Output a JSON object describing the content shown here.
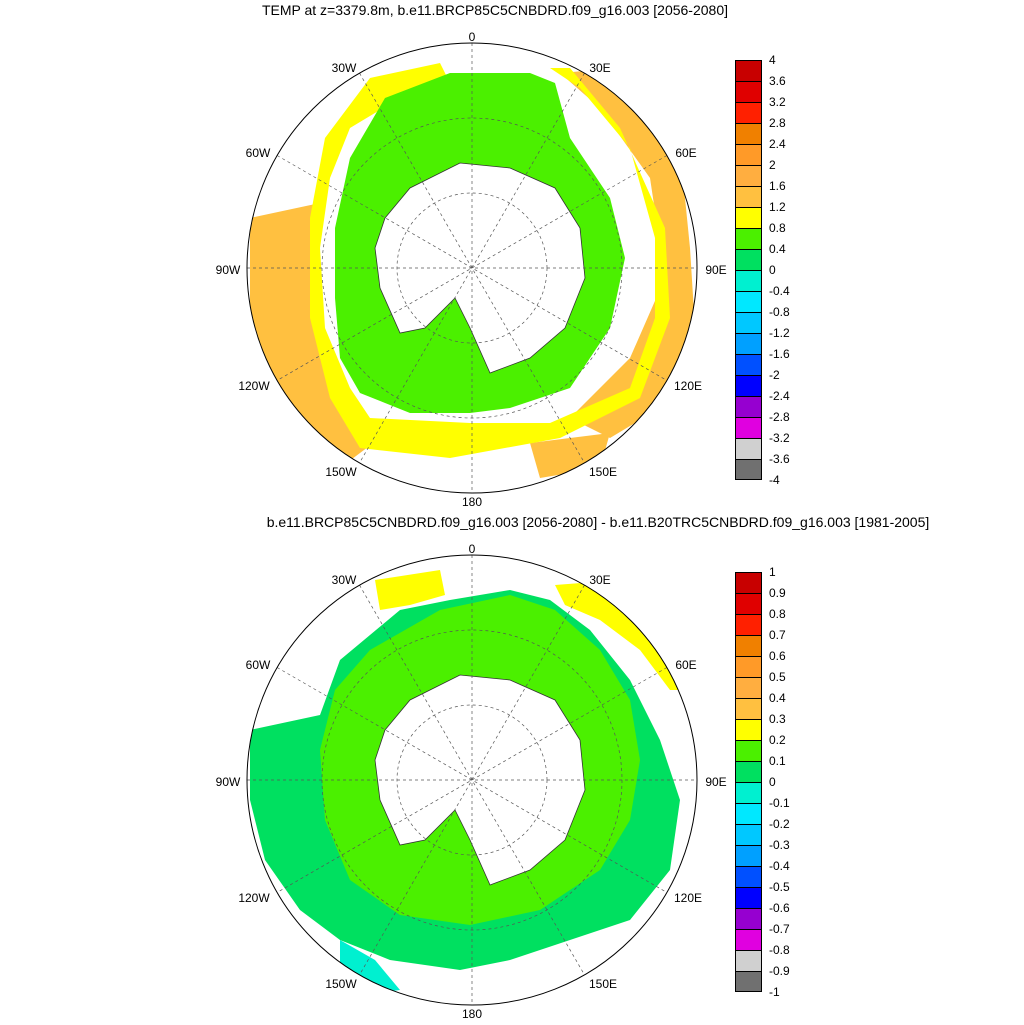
{
  "titles": {
    "top": "TEMP at z=3379.8m, b.e11.BRCP85C5CNBDRD.f09_g16.003 [2056-2080]",
    "bottom": "b.e11.BRCP85C5CNBDRD.f09_g16.003 [2056-2080] - b.e11.B20TRC5CNBDRD.f09_g16.003 [1981-2005]"
  },
  "map": {
    "projection": "south polar stereographic",
    "longitude_labels": [
      "0",
      "30E",
      "60E",
      "90E",
      "120E",
      "150E",
      "180",
      "150W",
      "120W",
      "90W",
      "60W",
      "30W"
    ],
    "land_color": "#ffffff",
    "graticule": "dashed"
  },
  "colorbars": {
    "top": {
      "labels": [
        "4",
        "3.6",
        "3.2",
        "2.8",
        "2.4",
        "2",
        "1.6",
        "1.2",
        "0.8",
        "0.4",
        "0",
        "-0.4",
        "-0.8",
        "-1.2",
        "-1.6",
        "-2",
        "-2.4",
        "-2.8",
        "-3.2",
        "-3.6",
        "-4"
      ],
      "colors": [
        "#c80000",
        "#e00000",
        "#ff2000",
        "#f08000",
        "#ff9a28",
        "#ffae40",
        "#ffc040",
        "#ffff00",
        "#4bf000",
        "#00e060",
        "#00f0d0",
        "#00e8ff",
        "#00c8ff",
        "#00a0ff",
        "#0050ff",
        "#0000ff",
        "#9600d0",
        "#e000e0",
        "#d0d0d0",
        "#707070"
      ]
    },
    "bottom": {
      "labels": [
        "1",
        "0.9",
        "0.8",
        "0.7",
        "0.6",
        "0.5",
        "0.4",
        "0.3",
        "0.2",
        "0.1",
        "0",
        "-0.1",
        "-0.2",
        "-0.3",
        "-0.4",
        "-0.5",
        "-0.6",
        "-0.7",
        "-0.8",
        "-0.9",
        "-1"
      ],
      "colors": [
        "#c80000",
        "#e00000",
        "#ff2000",
        "#f08000",
        "#ff9a28",
        "#ffae40",
        "#ffc040",
        "#ffff00",
        "#4bf000",
        "#00e060",
        "#00f0d0",
        "#00e8ff",
        "#00c8ff",
        "#00a0ff",
        "#0050ff",
        "#0000ff",
        "#9600d0",
        "#e000e0",
        "#d0d0d0",
        "#707070"
      ]
    }
  }
}
